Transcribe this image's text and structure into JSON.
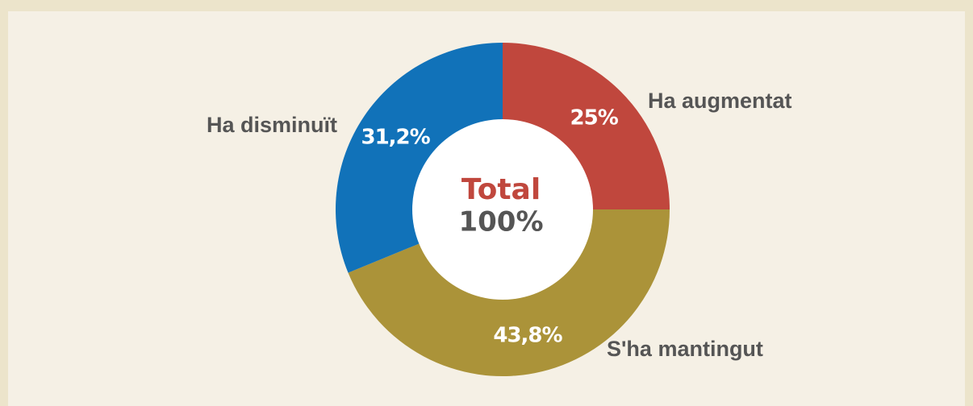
{
  "chart_data": {
    "type": "donut",
    "categories": [
      "Ha augmentat",
      "S'ha mantingut",
      "Ha disminuït"
    ],
    "values": [
      25,
      43.8,
      31.2
    ],
    "value_labels": [
      "25%",
      "43,8%",
      "31,2%"
    ],
    "colors": [
      "#c0473d",
      "#ab9339",
      "#1172b9"
    ],
    "center_title": "Total",
    "center_text": "100%"
  }
}
